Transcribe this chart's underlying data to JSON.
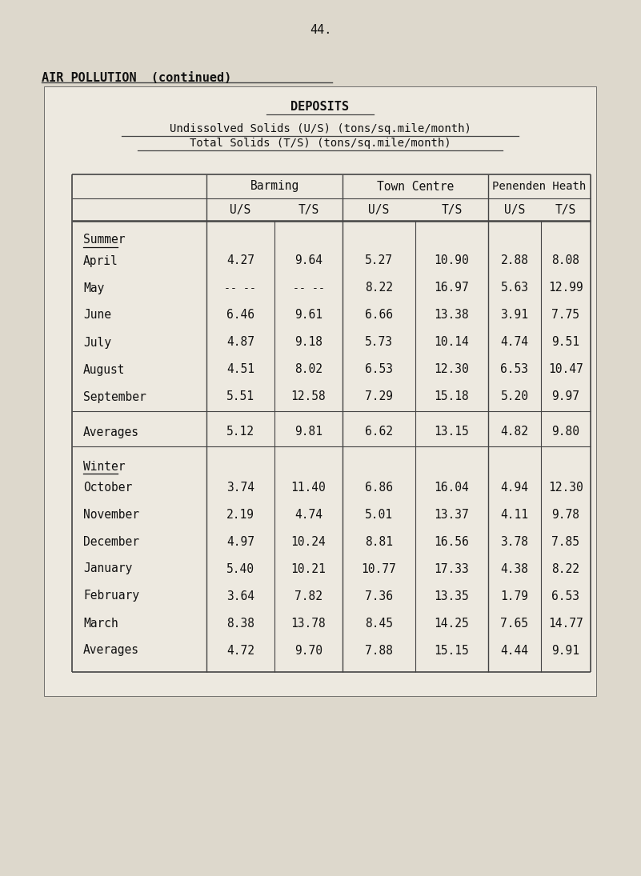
{
  "page_number": "44.",
  "heading": "AIR POLLUTION  (continued)",
  "title": "DEPOSITS",
  "subtitle1": "Undissolved Solids (U/S) (tons/sq.mile/month)",
  "subtitle2": "Total Solids (T/S) (tons/sq.mile/month)",
  "rows_summer": [
    [
      "April",
      "4.27",
      "9.64",
      "5.27",
      "10.90",
      "2.88",
      "8.08"
    ],
    [
      "May",
      "-- --",
      "-- --",
      "8.22",
      "16.97",
      "5.63",
      "12.99"
    ],
    [
      "June",
      "6.46",
      "9.61",
      "6.66",
      "13.38",
      "3.91",
      "7.75"
    ],
    [
      "July",
      "4.87",
      "9.18",
      "5.73",
      "10.14",
      "4.74",
      "9.51"
    ],
    [
      "August",
      "4.51",
      "8.02",
      "6.53",
      "12.30",
      "6.53",
      "10.47"
    ],
    [
      "September",
      "5.51",
      "12.58",
      "7.29",
      "15.18",
      "5.20",
      "9.97"
    ]
  ],
  "avg_summer": [
    "Averages",
    "5.12",
    "9.81",
    "6.62",
    "13.15",
    "4.82",
    "9.80"
  ],
  "rows_winter": [
    [
      "October",
      "3.74",
      "11.40",
      "6.86",
      "16.04",
      "4.94",
      "12.30"
    ],
    [
      "November",
      "2.19",
      "4.74",
      "5.01",
      "13.37",
      "4.11",
      "9.78"
    ],
    [
      "December",
      "4.97",
      "10.24",
      "8.81",
      "16.56",
      "3.78",
      "7.85"
    ],
    [
      "January",
      "5.40",
      "10.21",
      "10.77",
      "17.33",
      "4.38",
      "8.22"
    ],
    [
      "February",
      "3.64",
      "7.82",
      "7.36",
      "13.35",
      "1.79",
      "6.53"
    ],
    [
      "March",
      "8.38",
      "13.78",
      "8.45",
      "14.25",
      "7.65",
      "14.77"
    ]
  ],
  "avg_winter": [
    "Averages",
    "4.72",
    "9.70",
    "7.88",
    "15.15",
    "4.44",
    "9.91"
  ],
  "bg_color": "#ddd8cc",
  "table_bg": "#ede9e0",
  "text_color": "#111111",
  "line_color": "#444444"
}
